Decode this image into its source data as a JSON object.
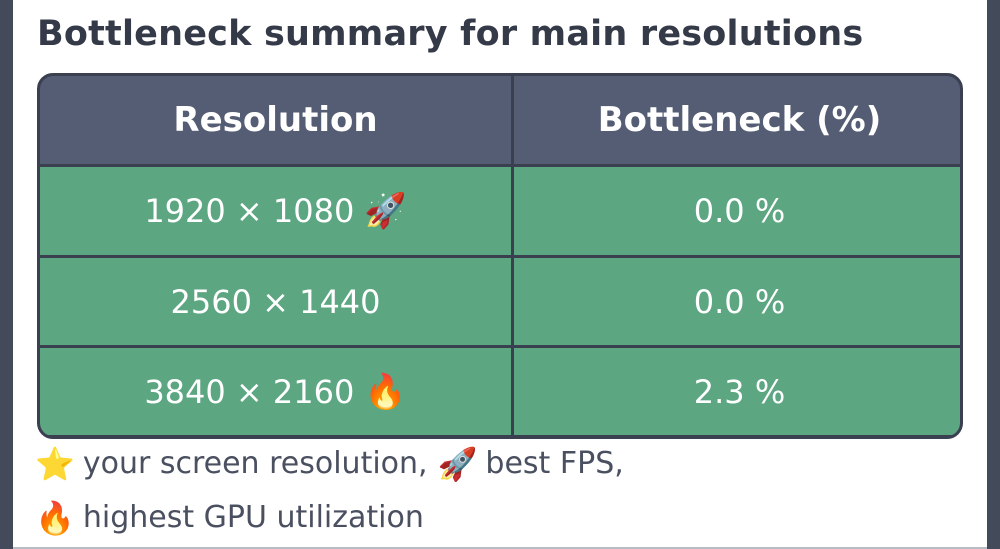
{
  "title": "Bottleneck summary for main resolutions",
  "table": {
    "headers": [
      "Resolution",
      "Bottleneck (%)"
    ],
    "rows": [
      {
        "resolution": "1920 × 1080",
        "icon": "🚀",
        "icon_name": "rocket-icon",
        "bottleneck": "0.0 %"
      },
      {
        "resolution": "2560 × 1440",
        "icon": "",
        "icon_name": "",
        "bottleneck": "0.0 %"
      },
      {
        "resolution": "3840 × 2160",
        "icon": "🔥",
        "icon_name": "fire-icon",
        "bottleneck": "2.3 %"
      }
    ]
  },
  "legend": {
    "star_icon": "⭐",
    "star_label": "your screen resolution,",
    "rocket_icon": "🚀",
    "rocket_label": "best FPS,",
    "fire_icon": "🔥",
    "fire_label": "highest GPU utilization"
  },
  "colors": {
    "header_bg": "#555d74",
    "row_bg": "#5ca682",
    "border": "#3a4050",
    "title_text": "#353a48"
  }
}
